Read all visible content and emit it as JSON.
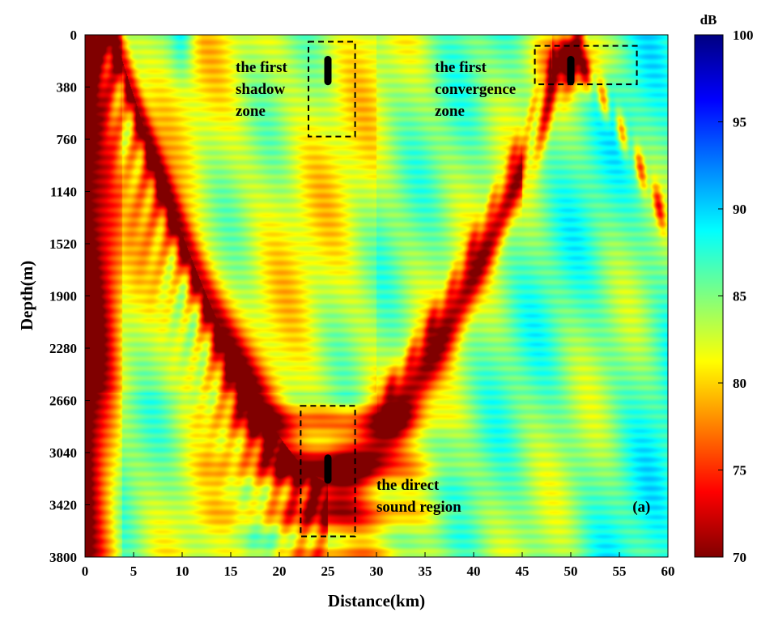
{
  "chart_data": {
    "type": "heatmap",
    "title": "",
    "xlabel": "Distance(km)",
    "ylabel": "Depth(m)",
    "xlim": [
      0,
      60
    ],
    "ylim": [
      3800,
      0
    ],
    "x_ticks": [
      "0",
      "5",
      "10",
      "15",
      "20",
      "25",
      "30",
      "35",
      "40",
      "45",
      "50",
      "55",
      "60"
    ],
    "y_ticks": [
      "0",
      "380",
      "760",
      "1140",
      "1520",
      "1900",
      "2280",
      "2660",
      "3040",
      "3420",
      "3800"
    ],
    "colorbar": {
      "label": "dB",
      "range": [
        70,
        100
      ],
      "ticks": [
        "100",
        "95",
        "90",
        "85",
        "80",
        "75",
        "70"
      ],
      "colormap": "jet (reversed: 70 dark red, 100 dark blue)"
    },
    "panel_label": "(a)",
    "annotations": [
      {
        "lines": [
          "the first",
          "shadow",
          "zone"
        ],
        "x_km": 15.5,
        "depth_m": 270
      },
      {
        "lines": [
          "the first",
          "convergence",
          "zone"
        ],
        "x_km": 36.0,
        "depth_m": 270
      },
      {
        "lines": [
          "the direct",
          "sound region"
        ],
        "x_km": 30.0,
        "depth_m": 3310
      }
    ],
    "boxes": [
      {
        "name": "shadow-zone-box",
        "x_range": [
          23.0,
          27.8
        ],
        "depth_range": [
          50,
          740
        ]
      },
      {
        "name": "convergence-zone-box",
        "x_range": [
          46.3,
          56.8
        ],
        "depth_range": [
          80,
          360
        ]
      },
      {
        "name": "direct-region-box",
        "x_range": [
          22.2,
          27.8
        ],
        "depth_range": [
          2700,
          3650
        ]
      }
    ],
    "markers": [
      {
        "name": "receiver-shallow",
        "x_km": 25,
        "depth_range": [
          180,
          340
        ]
      },
      {
        "name": "receiver-convergence",
        "x_km": 50,
        "depth_range": [
          180,
          340
        ]
      },
      {
        "name": "receiver-deep",
        "x_km": 25,
        "depth_range": [
          3080,
          3240
        ]
      }
    ],
    "grid": false
  }
}
